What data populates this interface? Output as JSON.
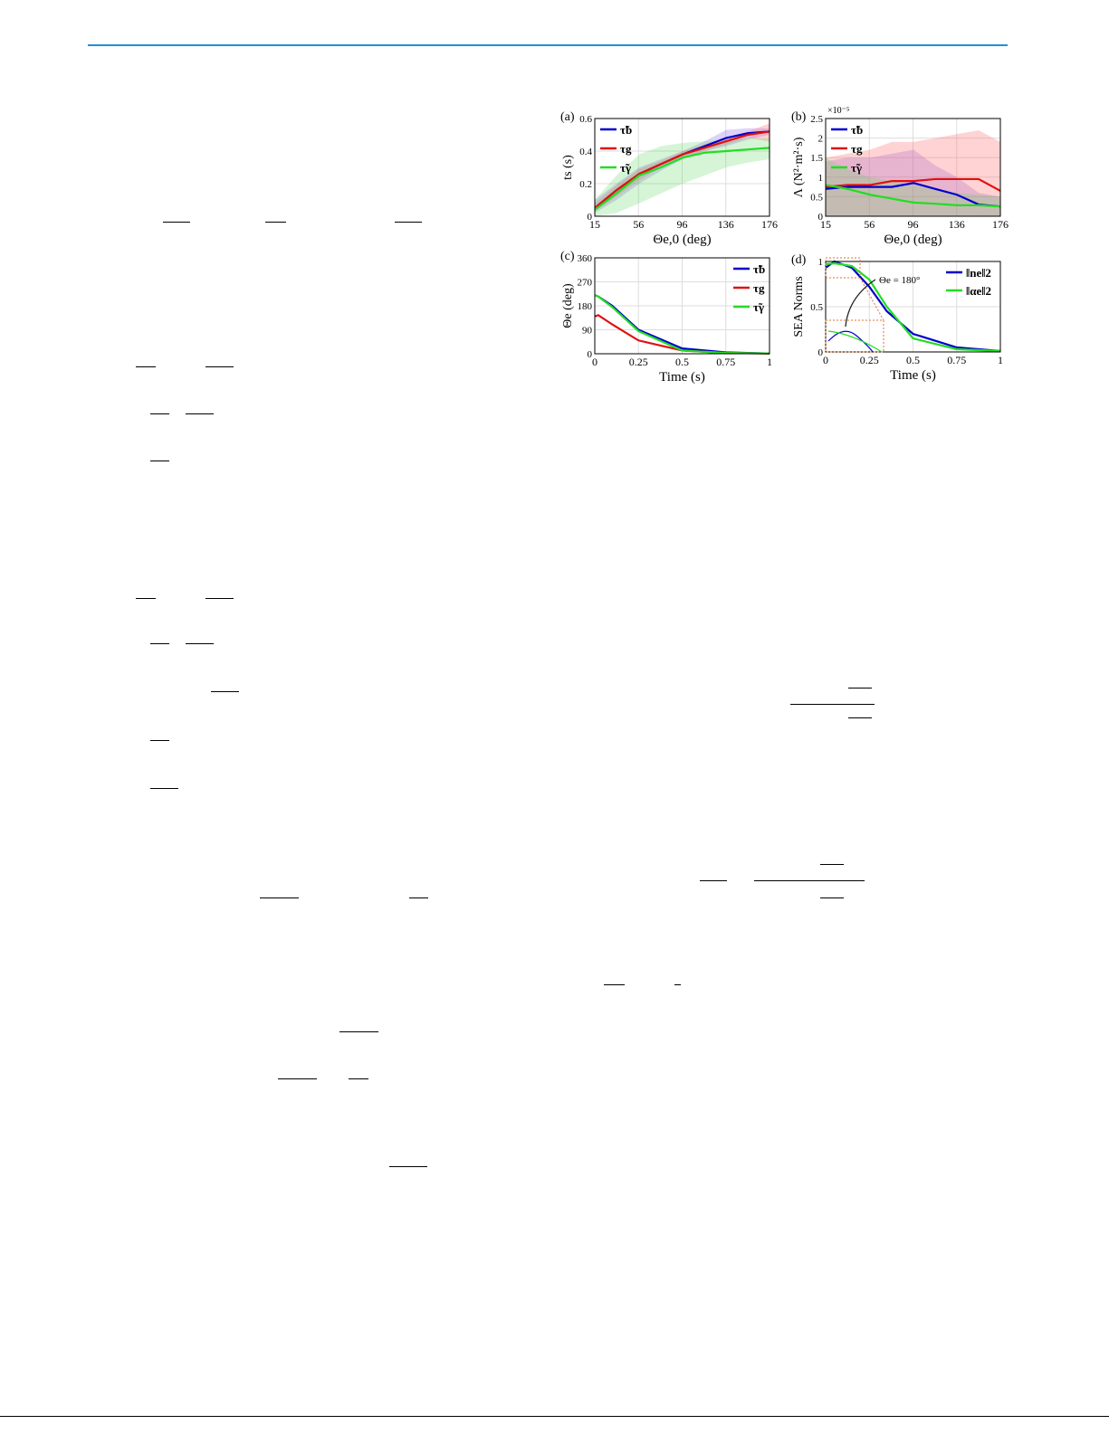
{
  "header": {
    "rule_color": "#1e90d6"
  },
  "chart_data": [
    {
      "panel": "(a)",
      "type": "line",
      "xlabel": "Θe,0 (deg)",
      "ylabel": "ts (s)",
      "xticks": [
        "15",
        "56",
        "96",
        "136",
        "176"
      ],
      "yticks": [
        "0",
        "0.2",
        "0.4",
        "0.6"
      ],
      "xlim": [
        15,
        176
      ],
      "ylim": [
        0,
        0.6
      ],
      "grid": true,
      "legend": "top-left",
      "x": [
        15,
        35,
        56,
        76,
        96,
        116,
        136,
        156,
        176
      ],
      "series": [
        {
          "name": "τ̃b",
          "color": "#0000cc",
          "values": [
            0.05,
            0.16,
            0.26,
            0.32,
            0.38,
            0.43,
            0.48,
            0.51,
            0.52
          ],
          "band": [
            [
              0.02,
              0.1,
              0.2,
              0.28,
              0.35,
              0.4,
              0.43,
              0.47,
              0.5
            ],
            [
              0.1,
              0.2,
              0.3,
              0.35,
              0.4,
              0.46,
              0.53,
              0.54,
              0.54
            ]
          ]
        },
        {
          "name": "τg",
          "color": "#e01010",
          "values": [
            0.05,
            0.16,
            0.26,
            0.32,
            0.38,
            0.42,
            0.46,
            0.5,
            0.52
          ],
          "band": [
            [
              0.03,
              0.12,
              0.22,
              0.3,
              0.36,
              0.4,
              0.44,
              0.48,
              0.46
            ],
            [
              0.08,
              0.19,
              0.29,
              0.34,
              0.4,
              0.44,
              0.48,
              0.52,
              0.57
            ]
          ]
        },
        {
          "name": "τ̃γ",
          "color": "#22dd22",
          "values": [
            0.04,
            0.14,
            0.25,
            0.3,
            0.36,
            0.39,
            0.4,
            0.41,
            0.42
          ],
          "band": [
            [
              0,
              0.02,
              0.08,
              0.14,
              0.2,
              0.25,
              0.3,
              0.33,
              0.35
            ],
            [
              0.1,
              0.25,
              0.38,
              0.43,
              0.45,
              0.46,
              0.47,
              0.48,
              0.48
            ]
          ]
        }
      ]
    },
    {
      "panel": "(b)",
      "type": "line",
      "xlabel": "Θe,0 (deg)",
      "ylabel": "Λ (N²·m²·s)",
      "yscale_note": "×10⁻⁵",
      "xticks": [
        "15",
        "56",
        "96",
        "136",
        "176"
      ],
      "yticks": [
        "0",
        "0.5",
        "1",
        "1.5",
        "2",
        "2.5"
      ],
      "xlim": [
        15,
        176
      ],
      "ylim": [
        0,
        2.5
      ],
      "grid": true,
      "legend": "top-left",
      "x": [
        15,
        35,
        56,
        76,
        96,
        116,
        136,
        156,
        176
      ],
      "series": [
        {
          "name": "τ̃b",
          "color": "#0000cc",
          "values": [
            0.7,
            0.75,
            0.75,
            0.75,
            0.85,
            0.7,
            0.55,
            0.3,
            0.25
          ],
          "band": [
            [
              0,
              0,
              0,
              0,
              0,
              0,
              0,
              0,
              0
            ],
            [
              1.4,
              1.5,
              1.5,
              1.6,
              1.7,
              1.3,
              1.0,
              0.6,
              0.5
            ]
          ]
        },
        {
          "name": "τg",
          "color": "#e01010",
          "values": [
            0.75,
            0.8,
            0.8,
            0.9,
            0.9,
            0.95,
            0.95,
            0.95,
            0.65
          ],
          "band": [
            [
              0,
              0,
              0,
              0,
              0,
              0,
              0,
              0,
              0
            ],
            [
              1.5,
              1.6,
              1.7,
              1.9,
              1.9,
              2.0,
              2.1,
              2.2,
              1.9
            ]
          ]
        },
        {
          "name": "τ̃γ",
          "color": "#22dd22",
          "values": [
            0.8,
            0.7,
            0.55,
            0.45,
            0.35,
            0.32,
            0.28,
            0.28,
            0.25
          ],
          "band": [
            [
              0,
              0,
              0,
              0,
              0,
              0,
              0,
              0,
              0
            ],
            [
              1.5,
              1.2,
              1.0,
              0.9,
              0.8,
              0.7,
              0.6,
              0.55,
              0.5
            ]
          ]
        }
      ]
    },
    {
      "panel": "(c)",
      "type": "line",
      "xlabel": "Time (s)",
      "ylabel": "Θe (deg)",
      "xticks": [
        "0",
        "0.25",
        "0.5",
        "0.75",
        "1"
      ],
      "yticks": [
        "0",
        "90",
        "180",
        "270",
        "360"
      ],
      "xlim": [
        0,
        1
      ],
      "ylim": [
        0,
        360
      ],
      "grid": true,
      "legend": "top-right",
      "x": [
        0,
        0.02,
        0.1,
        0.25,
        0.5,
        0.75,
        1
      ],
      "series": [
        {
          "name": "τ̃b",
          "color": "#0000cc",
          "values": [
            220,
            215,
            180,
            90,
            20,
            5,
            1
          ]
        },
        {
          "name": "τg",
          "color": "#e01010",
          "values": [
            140,
            145,
            110,
            50,
            12,
            3,
            1
          ]
        },
        {
          "name": "τ̃γ",
          "color": "#22dd22",
          "values": [
            220,
            215,
            175,
            85,
            12,
            3,
            1
          ]
        }
      ]
    },
    {
      "panel": "(d)",
      "type": "line",
      "xlabel": "Time (s)",
      "ylabel": "SEA Norms",
      "xticks": [
        "0",
        "0.25",
        "0.5",
        "0.75",
        "1"
      ],
      "yticks": [
        "0",
        "0.5",
        "1"
      ],
      "xlim": [
        0,
        1
      ],
      "ylim": [
        0,
        1
      ],
      "grid": true,
      "legend": "top-right",
      "annotation": "Θe = 180°",
      "x": [
        0,
        0.05,
        0.15,
        0.25,
        0.35,
        0.5,
        0.75,
        1
      ],
      "series": [
        {
          "name": "‖ne‖2",
          "color": "#0000cc",
          "values": [
            0.93,
            1.0,
            0.93,
            0.72,
            0.45,
            0.2,
            0.05,
            0.01
          ]
        },
        {
          "name": "‖αe‖2",
          "color": "#22dd22",
          "values": [
            0.97,
            0.98,
            0.95,
            0.8,
            0.5,
            0.15,
            0.03,
            0.01
          ]
        }
      ]
    }
  ]
}
